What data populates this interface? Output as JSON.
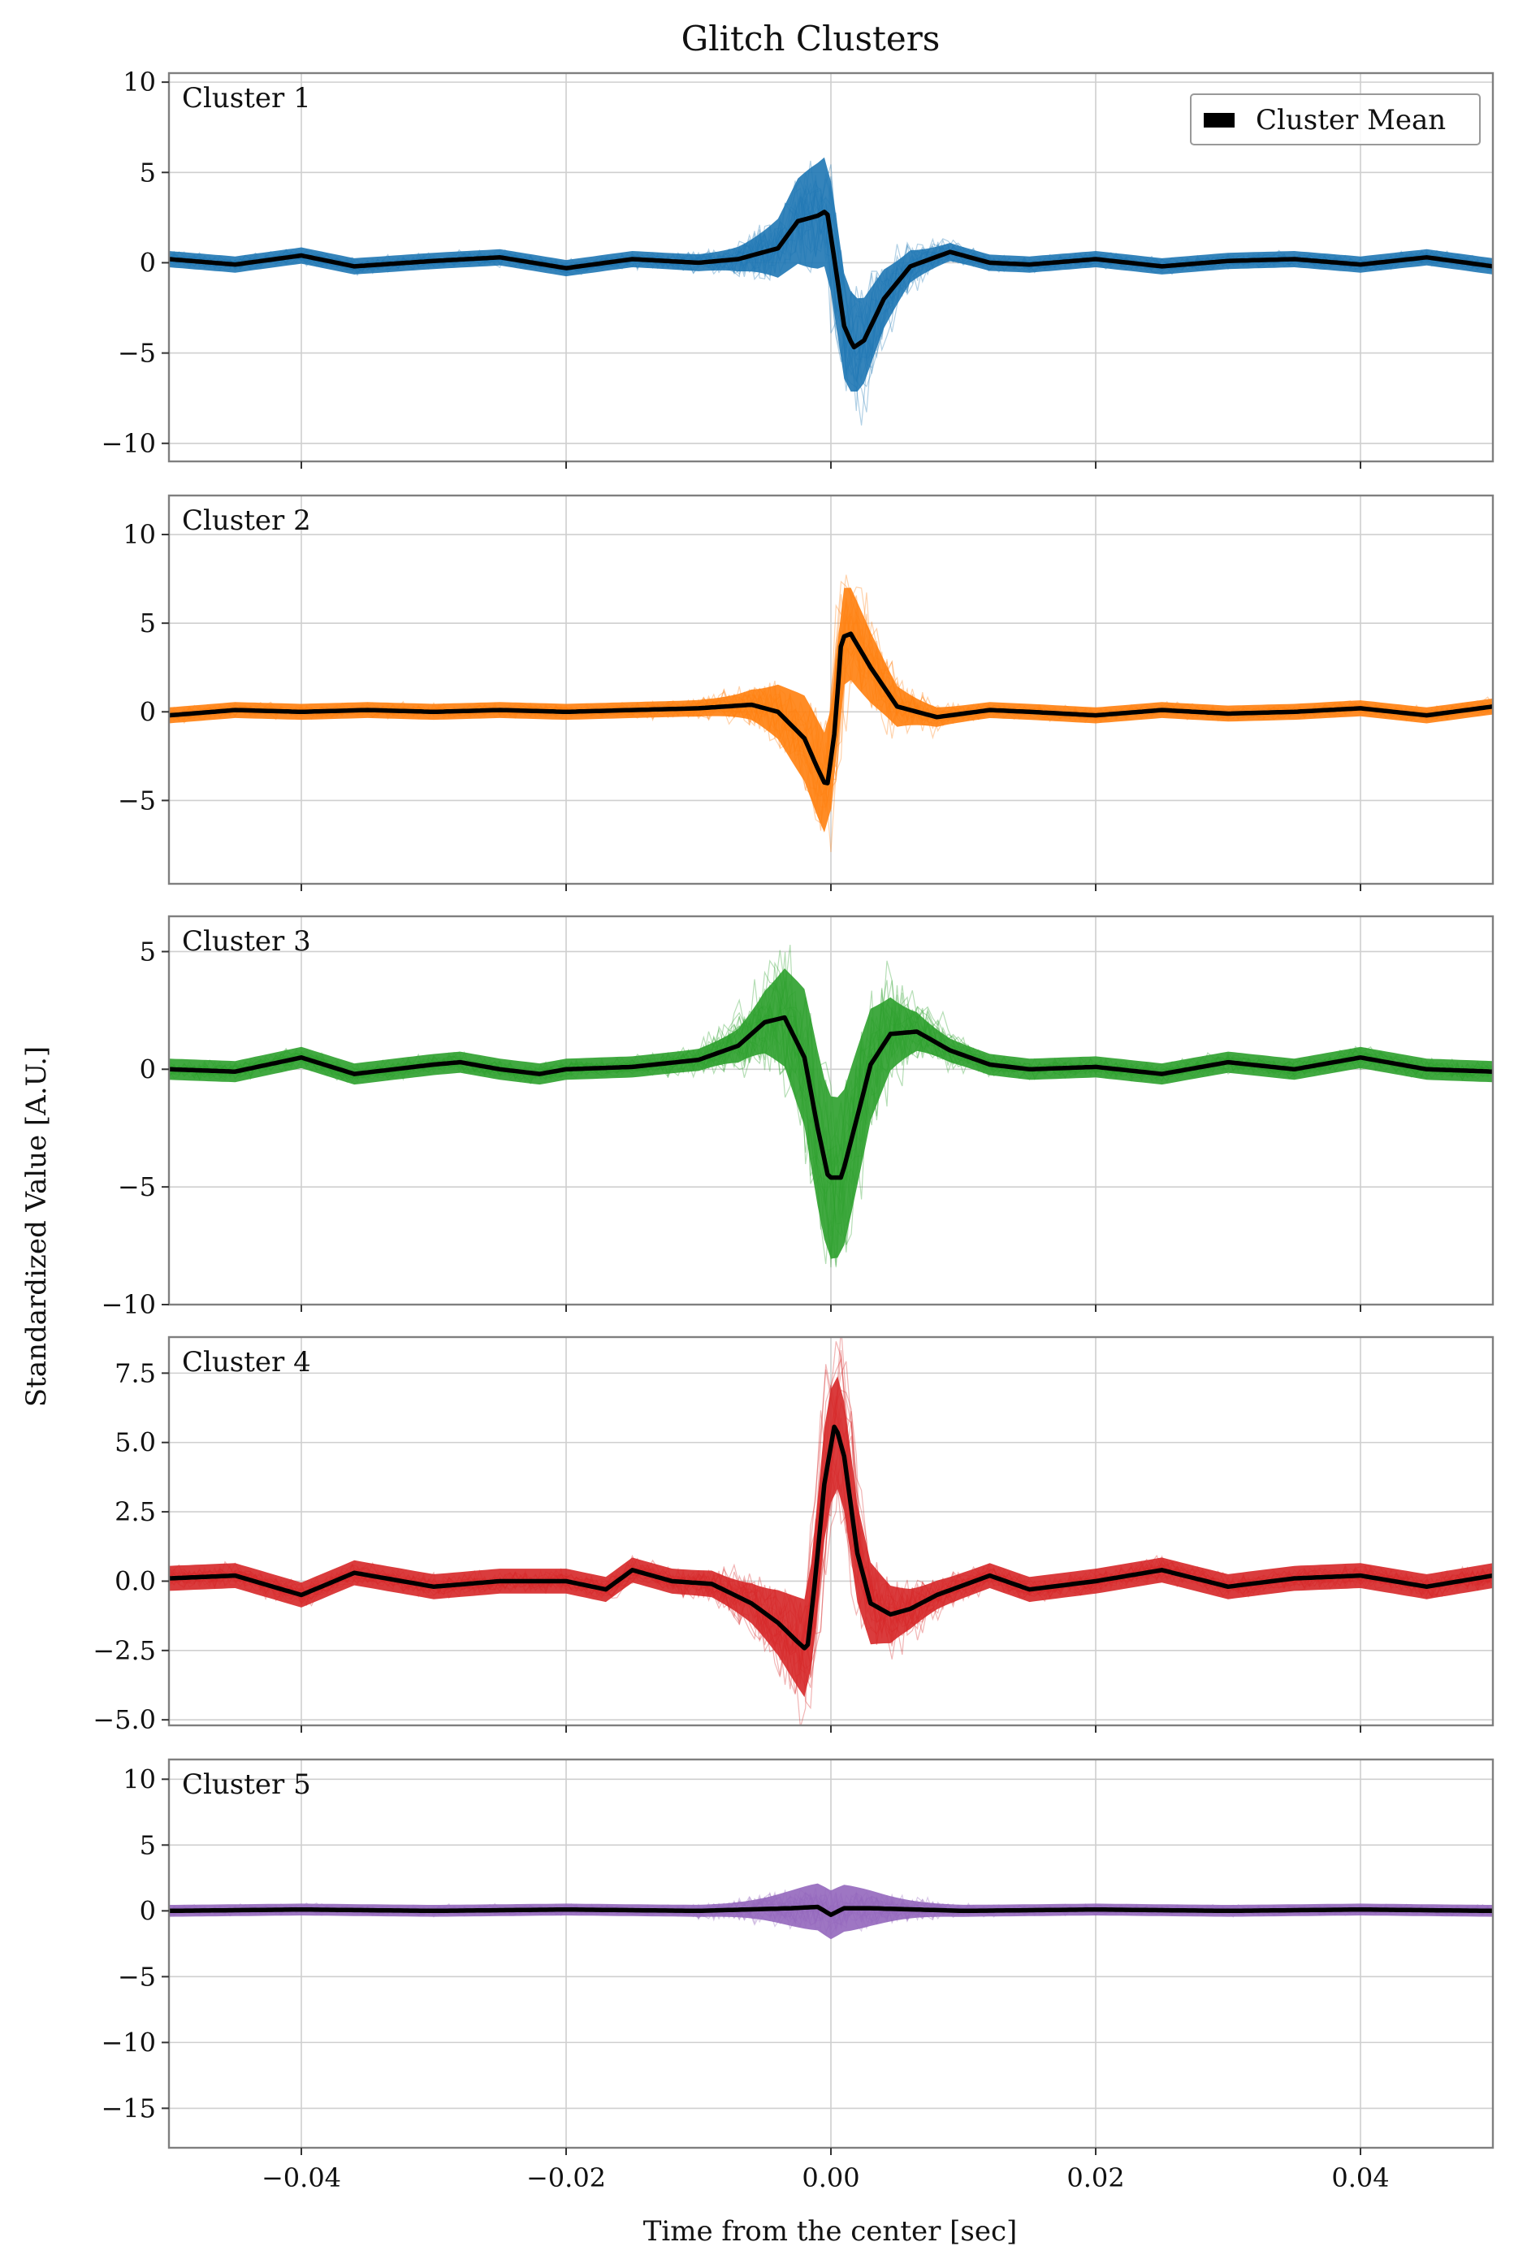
{
  "chart_data": {
    "type": "line",
    "title": "Glitch Clusters",
    "xlabel": "Time from the center [sec]",
    "ylabel": "Standardized Value [A.U.]",
    "xlim": [
      -0.05,
      0.05
    ],
    "x_ticks": [
      -0.04,
      -0.02,
      0.0,
      0.02,
      0.04
    ],
    "x_tick_labels": [
      "−0.04",
      "−0.02",
      "0.00",
      "0.02",
      "0.04"
    ],
    "grid": true,
    "legend": {
      "position": "top-right",
      "entries": [
        {
          "label": "Cluster Mean",
          "color": "#000000"
        }
      ]
    },
    "panels": [
      {
        "label": "Cluster 1",
        "color": "#1f77b4",
        "ylim": [
          -11,
          10.5
        ],
        "y_ticks": [
          10,
          5,
          0,
          -5,
          -10
        ],
        "y_tick_labels": [
          "10",
          "5",
          "0",
          "−5",
          "−10"
        ],
        "band_scale": 2.6,
        "mean": [
          [
            -0.05,
            0.2
          ],
          [
            -0.045,
            -0.1
          ],
          [
            -0.04,
            0.4
          ],
          [
            -0.036,
            -0.2
          ],
          [
            -0.03,
            0.1
          ],
          [
            -0.025,
            0.3
          ],
          [
            -0.02,
            -0.3
          ],
          [
            -0.015,
            0.2
          ],
          [
            -0.01,
            0.0
          ],
          [
            -0.007,
            0.2
          ],
          [
            -0.004,
            0.8
          ],
          [
            -0.0025,
            2.3
          ],
          [
            -0.001,
            2.6
          ],
          [
            -0.0003,
            2.9
          ],
          [
            0.0003,
            0.0
          ],
          [
            0.001,
            -3.5
          ],
          [
            0.0017,
            -4.7
          ],
          [
            0.0025,
            -4.3
          ],
          [
            0.004,
            -2.0
          ],
          [
            0.006,
            -0.2
          ],
          [
            0.009,
            0.6
          ],
          [
            0.012,
            0.0
          ],
          [
            0.015,
            -0.1
          ],
          [
            0.02,
            0.2
          ],
          [
            0.025,
            -0.2
          ],
          [
            0.03,
            0.1
          ],
          [
            0.035,
            0.2
          ],
          [
            0.04,
            -0.1
          ],
          [
            0.045,
            0.3
          ],
          [
            0.05,
            -0.2
          ]
        ]
      },
      {
        "label": "Cluster 2",
        "color": "#ff7f0e",
        "ylim": [
          -9.7,
          12.2
        ],
        "y_ticks": [
          10,
          5,
          0,
          -5
        ],
        "y_tick_labels": [
          "10",
          "5",
          "0",
          "−5"
        ],
        "band_scale": 2.4,
        "mean": [
          [
            -0.05,
            -0.2
          ],
          [
            -0.045,
            0.1
          ],
          [
            -0.04,
            0.0
          ],
          [
            -0.035,
            0.1
          ],
          [
            -0.03,
            0.0
          ],
          [
            -0.025,
            0.1
          ],
          [
            -0.02,
            0.0
          ],
          [
            -0.015,
            0.1
          ],
          [
            -0.01,
            0.2
          ],
          [
            -0.006,
            0.4
          ],
          [
            -0.004,
            0.0
          ],
          [
            -0.002,
            -1.5
          ],
          [
            -0.001,
            -3.2
          ],
          [
            -0.0003,
            -4.3
          ],
          [
            0.0003,
            -1.0
          ],
          [
            0.0008,
            4.2
          ],
          [
            0.0015,
            4.4
          ],
          [
            0.003,
            2.5
          ],
          [
            0.005,
            0.3
          ],
          [
            0.008,
            -0.3
          ],
          [
            0.012,
            0.1
          ],
          [
            0.015,
            0.0
          ],
          [
            0.02,
            -0.2
          ],
          [
            0.025,
            0.1
          ],
          [
            0.03,
            -0.1
          ],
          [
            0.035,
            0.0
          ],
          [
            0.04,
            0.2
          ],
          [
            0.045,
            -0.2
          ],
          [
            0.05,
            0.3
          ]
        ]
      },
      {
        "label": "Cluster 3",
        "color": "#2ca02c",
        "ylim": [
          -10,
          6.5
        ],
        "y_ticks": [
          5,
          0,
          -5,
          -10
        ],
        "y_tick_labels": [
          "5",
          "0",
          "−5",
          "−10"
        ],
        "band_scale": 3.0,
        "mean": [
          [
            -0.05,
            0.0
          ],
          [
            -0.045,
            -0.1
          ],
          [
            -0.04,
            0.5
          ],
          [
            -0.036,
            -0.2
          ],
          [
            -0.03,
            0.2
          ],
          [
            -0.028,
            0.3
          ],
          [
            -0.025,
            0.0
          ],
          [
            -0.022,
            -0.2
          ],
          [
            -0.02,
            0.0
          ],
          [
            -0.015,
            0.1
          ],
          [
            -0.01,
            0.4
          ],
          [
            -0.007,
            1.0
          ],
          [
            -0.005,
            2.0
          ],
          [
            -0.0035,
            2.2
          ],
          [
            -0.002,
            0.5
          ],
          [
            -0.001,
            -2.5
          ],
          [
            -0.0002,
            -4.6
          ],
          [
            0.0008,
            -4.6
          ],
          [
            0.002,
            -2.0
          ],
          [
            0.003,
            0.2
          ],
          [
            0.0045,
            1.5
          ],
          [
            0.0065,
            1.6
          ],
          [
            0.009,
            0.8
          ],
          [
            0.012,
            0.2
          ],
          [
            0.015,
            0.0
          ],
          [
            0.02,
            0.1
          ],
          [
            0.025,
            -0.2
          ],
          [
            0.03,
            0.3
          ],
          [
            0.035,
            0.0
          ],
          [
            0.04,
            0.5
          ],
          [
            0.045,
            0.0
          ],
          [
            0.05,
            -0.1
          ]
        ]
      },
      {
        "label": "Cluster 4",
        "color": "#d62728",
        "ylim": [
          -5.2,
          8.8
        ],
        "y_ticks": [
          7.5,
          5.0,
          2.5,
          0.0,
          -2.5,
          -5.0
        ],
        "y_tick_labels": [
          "7.5",
          "5.0",
          "2.5",
          "0.0",
          "−2.5",
          "−5.0"
        ],
        "band_scale": 1.6,
        "mean": [
          [
            -0.05,
            0.1
          ],
          [
            -0.045,
            0.2
          ],
          [
            -0.04,
            -0.5
          ],
          [
            -0.036,
            0.3
          ],
          [
            -0.03,
            -0.2
          ],
          [
            -0.025,
            0.0
          ],
          [
            -0.02,
            0.0
          ],
          [
            -0.017,
            -0.3
          ],
          [
            -0.015,
            0.4
          ],
          [
            -0.012,
            0.0
          ],
          [
            -0.009,
            -0.1
          ],
          [
            -0.006,
            -0.8
          ],
          [
            -0.004,
            -1.5
          ],
          [
            -0.0025,
            -2.2
          ],
          [
            -0.0018,
            -2.5
          ],
          [
            -0.0012,
            0.0
          ],
          [
            -0.0005,
            3.5
          ],
          [
            0.0003,
            5.7
          ],
          [
            0.001,
            4.5
          ],
          [
            0.002,
            1.0
          ],
          [
            0.003,
            -0.8
          ],
          [
            0.0045,
            -1.2
          ],
          [
            0.006,
            -1.0
          ],
          [
            0.008,
            -0.5
          ],
          [
            0.012,
            0.2
          ],
          [
            0.015,
            -0.3
          ],
          [
            0.02,
            0.0
          ],
          [
            0.025,
            0.4
          ],
          [
            0.03,
            -0.2
          ],
          [
            0.035,
            0.1
          ],
          [
            0.04,
            0.2
          ],
          [
            0.045,
            -0.2
          ],
          [
            0.05,
            0.2
          ]
        ]
      },
      {
        "label": "Cluster 5",
        "color": "#9467bd",
        "ylim": [
          -18,
          11.5
        ],
        "y_ticks": [
          10,
          5,
          0,
          -5,
          -10,
          -15
        ],
        "y_tick_labels": [
          "10",
          "5",
          "0",
          "−5",
          "−10",
          "−15"
        ],
        "band_scale": 1.4,
        "mean": [
          [
            -0.05,
            0.0
          ],
          [
            -0.04,
            0.1
          ],
          [
            -0.03,
            0.0
          ],
          [
            -0.02,
            0.1
          ],
          [
            -0.01,
            0.0
          ],
          [
            -0.003,
            0.2
          ],
          [
            -0.001,
            0.3
          ],
          [
            0.0,
            -0.3
          ],
          [
            0.001,
            0.2
          ],
          [
            0.003,
            0.2
          ],
          [
            0.01,
            0.0
          ],
          [
            0.02,
            0.1
          ],
          [
            0.03,
            0.0
          ],
          [
            0.04,
            0.1
          ],
          [
            0.05,
            0.0
          ]
        ]
      }
    ]
  }
}
